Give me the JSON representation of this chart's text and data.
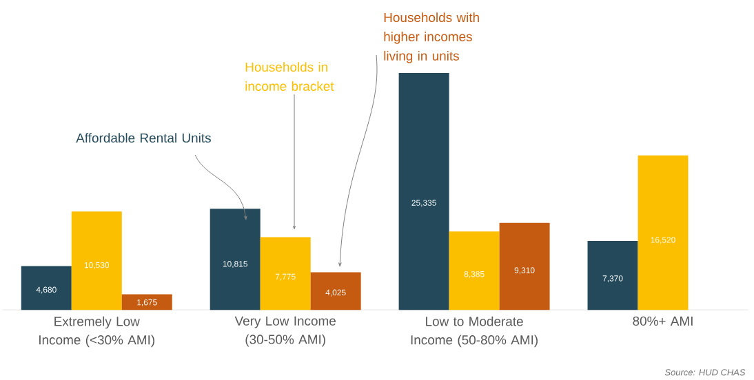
{
  "chart_data": {
    "type": "bar",
    "categories": [
      "Extremely Low Income (<30% AMI)",
      "Very Low Income (30-50% AMI)",
      "Low to Moderate Income (50-80% AMI)",
      "80%+ AMI"
    ],
    "series": [
      {
        "name": "Affordable Rental Units",
        "color": "#23495a",
        "values": [
          4680,
          10815,
          25335,
          7370
        ],
        "value_labels": [
          "4,680",
          "10,815",
          "25,335",
          "7,370"
        ]
      },
      {
        "name": "Households in income bracket",
        "color": "#fbbf00",
        "values": [
          10530,
          7775,
          8385,
          16520
        ],
        "value_labels": [
          "10,530",
          "7,775",
          "8,385",
          "16,520"
        ]
      },
      {
        "name": "Households with higher incomes living in units",
        "color": "#c55a11",
        "values": [
          1675,
          4025,
          9310,
          null
        ],
        "value_labels": [
          "1,675",
          "4,025",
          "9,310",
          null
        ]
      }
    ],
    "annotations": [
      "Source: HUD CHAS"
    ]
  }
}
